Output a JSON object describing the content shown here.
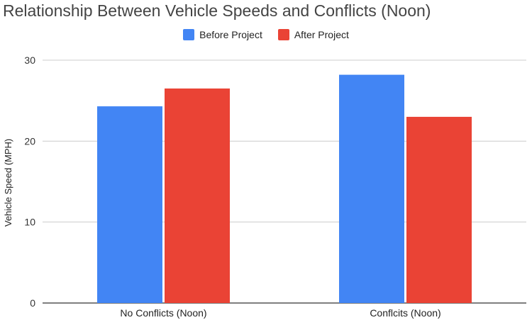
{
  "chart_data": {
    "type": "bar",
    "title": "Relationship Between Vehicle Speeds and Conflicts (Noon)",
    "xlabel": "",
    "ylabel": "Vehicle Speed (MPH)",
    "categories": [
      "No Conflicts (Noon)",
      "Conflcits (Noon)"
    ],
    "series": [
      {
        "name": "Before Project",
        "values": [
          24.3,
          28.2
        ],
        "color": "#4285F4"
      },
      {
        "name": "After Project",
        "values": [
          26.5,
          23.0
        ],
        "color": "#EA4335"
      }
    ],
    "ylim": [
      0,
      30
    ],
    "yticks": [
      0,
      10,
      20,
      30
    ],
    "grid": true,
    "legend_position": "top-center"
  }
}
